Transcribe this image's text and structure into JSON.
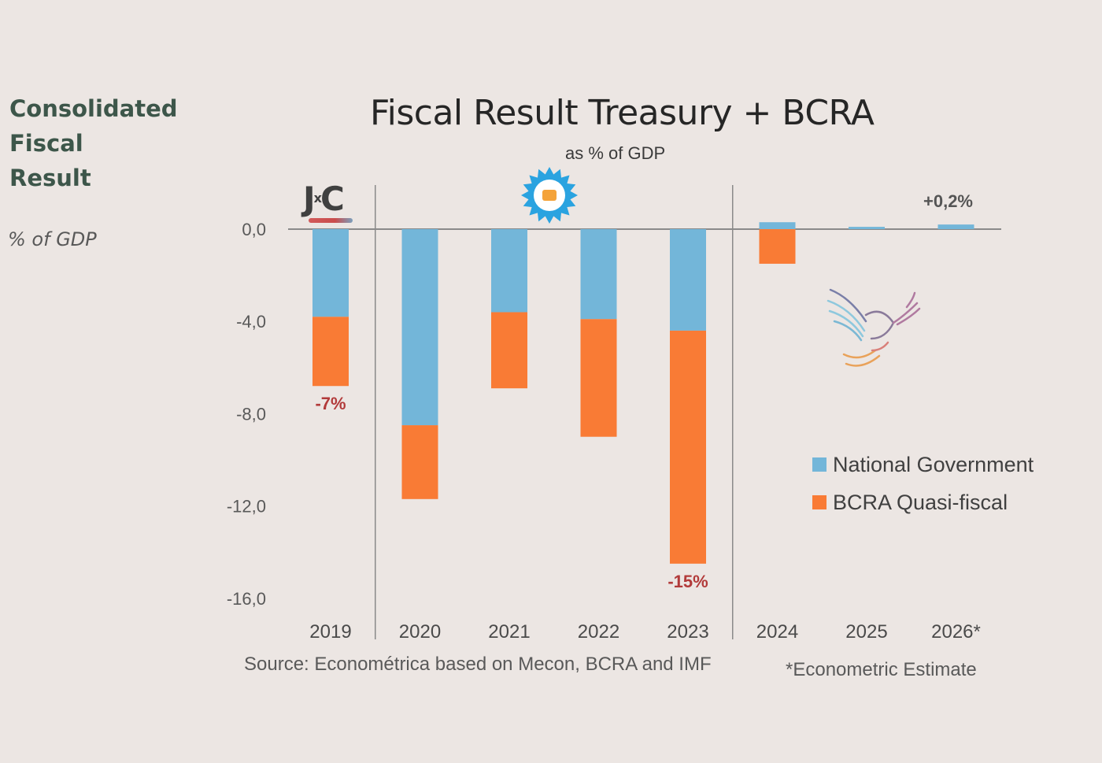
{
  "side": {
    "title_lines": [
      "Consolidated",
      "Fiscal",
      "Result"
    ],
    "unit": "% of GDP"
  },
  "logos": {
    "left": "JxC",
    "left_x": "x",
    "sun": "sun-emblem-icon",
    "bird": "eagle-icon"
  },
  "footer": {
    "source": "Source: Econométrica based on Mecon, BCRA and IMF",
    "estimate_note": "*Econometric Estimate"
  },
  "chart_data": {
    "type": "bar",
    "stacked": true,
    "title": "Fiscal Result Treasury + BCRA",
    "subtitle": "as % of GDP",
    "xlabel": "",
    "ylabel": "% of GDP",
    "categories": [
      "2019",
      "2020",
      "2021",
      "2022",
      "2023",
      "2024",
      "2025",
      "2026*"
    ],
    "series": [
      {
        "name": "National Government",
        "color": "#73b6d9",
        "values": [
          -3.8,
          -8.5,
          -3.6,
          -3.9,
          -4.4,
          0.3,
          0.1,
          0.2
        ]
      },
      {
        "name": "BCRA Quasi-fiscal",
        "color": "#f97b35",
        "values": [
          -3.0,
          -3.2,
          -3.3,
          -5.1,
          -10.1,
          -1.5,
          0.0,
          0.0
        ]
      }
    ],
    "y_ticks": [
      "0,0",
      "-4,0",
      "-8,0",
      "-12,0",
      "-16,0"
    ],
    "y_tick_values": [
      0,
      -4,
      -8,
      -12,
      -16
    ],
    "ylim": [
      -17.2,
      1.5
    ],
    "grid": false,
    "legend_position": "right",
    "annotations": [
      {
        "category": "2019",
        "text": "-7%"
      },
      {
        "category": "2023",
        "text": "-15%"
      },
      {
        "category": "2026*",
        "text": "+0,2%"
      }
    ],
    "period_dividers_after": [
      "2019",
      "2023"
    ]
  }
}
